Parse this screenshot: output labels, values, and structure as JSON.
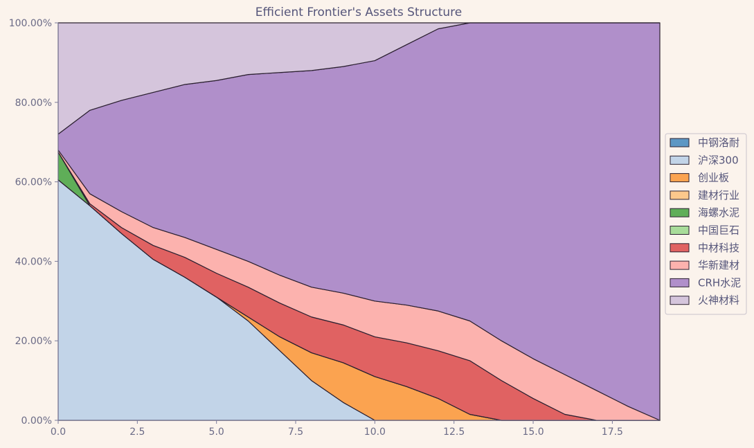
{
  "chart_data": {
    "type": "area",
    "stacked": true,
    "normalized": true,
    "title": "Efficient Frontier's Assets Structure",
    "xlabel": "",
    "ylabel": "",
    "xlim": [
      0,
      19
    ],
    "ylim": [
      0,
      1
    ],
    "xticks": [
      0,
      2.5,
      5,
      7.5,
      10,
      12.5,
      15,
      17.5
    ],
    "xtick_labels": [
      "0.0",
      "2.5",
      "5.0",
      "7.5",
      "10.0",
      "12.5",
      "15.0",
      "17.5"
    ],
    "yticks": [
      0,
      0.2,
      0.4,
      0.6,
      0.8,
      1.0
    ],
    "ytick_labels": [
      "0.00%",
      "20.00%",
      "40.00%",
      "60.00%",
      "80.00%",
      "100.00%"
    ],
    "grid": false,
    "legend_position": "right",
    "x": [
      0,
      1,
      2,
      3,
      4,
      5,
      6,
      7,
      8,
      9,
      10,
      11,
      12,
      13,
      14,
      15,
      16,
      17,
      18,
      19
    ],
    "series": [
      {
        "name": "中钢洛耐",
        "color": "#5d97c4",
        "values": [
          0,
          0,
          0,
          0,
          0,
          0,
          0,
          0,
          0,
          0,
          0,
          0,
          0,
          0,
          0,
          0,
          0,
          0,
          0,
          0
        ]
      },
      {
        "name": "沪深300",
        "color": "#c2d4e8",
        "values": [
          0.605,
          0.54,
          0.47,
          0.405,
          0.36,
          0.31,
          0.25,
          0.175,
          0.1,
          0.045,
          0,
          0,
          0,
          0,
          0,
          0,
          0,
          0,
          0,
          0
        ]
      },
      {
        "name": "创业板",
        "color": "#fba350",
        "values": [
          0,
          0,
          0,
          0,
          0,
          0,
          0.01,
          0.035,
          0.07,
          0.1,
          0.11,
          0.085,
          0.055,
          0.015,
          0,
          0,
          0,
          0,
          0,
          0
        ]
      },
      {
        "name": "建材行业",
        "color": "#fcc88c",
        "values": [
          0,
          0,
          0,
          0,
          0,
          0,
          0,
          0,
          0,
          0,
          0,
          0,
          0,
          0,
          0,
          0,
          0,
          0,
          0,
          0
        ]
      },
      {
        "name": "海螺水泥",
        "color": "#5fae58",
        "values": [
          0.07,
          0,
          0,
          0,
          0,
          0,
          0,
          0,
          0,
          0,
          0,
          0,
          0,
          0,
          0,
          0,
          0,
          0,
          0,
          0
        ]
      },
      {
        "name": "中国巨石",
        "color": "#a8dc9a",
        "values": [
          0,
          0,
          0,
          0,
          0,
          0,
          0,
          0,
          0,
          0,
          0,
          0,
          0,
          0,
          0,
          0,
          0,
          0,
          0,
          0
        ]
      },
      {
        "name": "中材科技",
        "color": "#e06262",
        "values": [
          0,
          0.005,
          0.015,
          0.035,
          0.05,
          0.06,
          0.075,
          0.085,
          0.09,
          0.095,
          0.1,
          0.11,
          0.12,
          0.135,
          0.1,
          0.055,
          0.015,
          0,
          0,
          0
        ]
      },
      {
        "name": "华新建材",
        "color": "#fcb2ae",
        "values": [
          0.005,
          0.025,
          0.04,
          0.045,
          0.05,
          0.06,
          0.065,
          0.07,
          0.075,
          0.08,
          0.09,
          0.095,
          0.1,
          0.1,
          0.1,
          0.1,
          0.1,
          0.075,
          0.035,
          0
        ]
      },
      {
        "name": "CRH水泥",
        "color": "#b08fca",
        "values": [
          0.04,
          0.21,
          0.28,
          0.34,
          0.385,
          0.425,
          0.47,
          0.51,
          0.545,
          0.57,
          0.605,
          0.655,
          0.71,
          0.75,
          0.8,
          0.845,
          0.885,
          0.925,
          0.965,
          1.0
        ]
      },
      {
        "name": "火神材料",
        "color": "#d5c5dc",
        "values": [
          0.28,
          0.22,
          0.195,
          0.175,
          0.155,
          0.145,
          0.13,
          0.125,
          0.12,
          0.11,
          0.095,
          0.055,
          0.015,
          0,
          0,
          0,
          0,
          0,
          0,
          0
        ]
      }
    ]
  }
}
